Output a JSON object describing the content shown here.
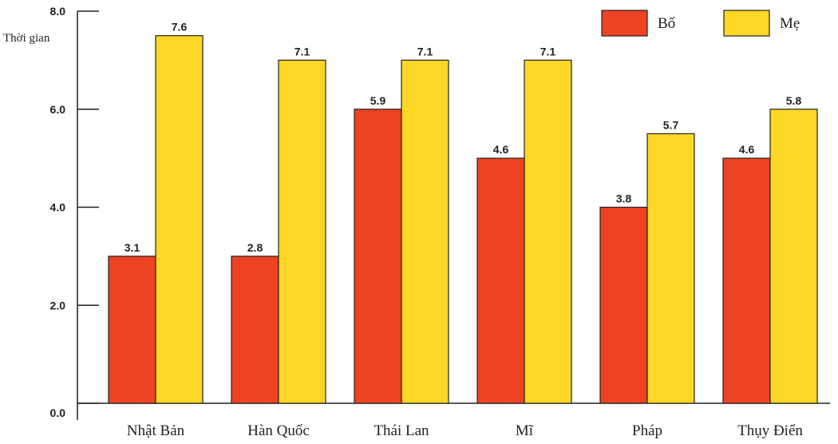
{
  "chart_data": {
    "type": "bar",
    "categories": [
      "Nhật Bản",
      "Hàn Quốc",
      "Thái Lan",
      "Mĩ",
      "Pháp",
      "Thụy Điển"
    ],
    "series": [
      {
        "name": "Bố",
        "values": [
          3.1,
          2.8,
          5.9,
          4.6,
          3.8,
          4.6
        ],
        "color": "#EE4322"
      },
      {
        "name": "Mẹ",
        "values": [
          7.6,
          7.1,
          7.1,
          7.1,
          5.7,
          5.8
        ],
        "color": "#FDD726"
      }
    ],
    "bar_heights": [
      [
        3.0,
        3.0,
        6.0,
        5.0,
        4.0,
        5.0
      ],
      [
        7.5,
        7.0,
        7.0,
        7.0,
        5.5,
        6.0
      ]
    ],
    "ylabel": "Thời gian",
    "ylim": [
      0,
      8
    ],
    "yticks": [
      "0.0",
      "2.0",
      "4.0",
      "6.0",
      "8.0"
    ],
    "legend_position": "top-right",
    "grid": false,
    "bar_stroke_color": "#222222"
  }
}
